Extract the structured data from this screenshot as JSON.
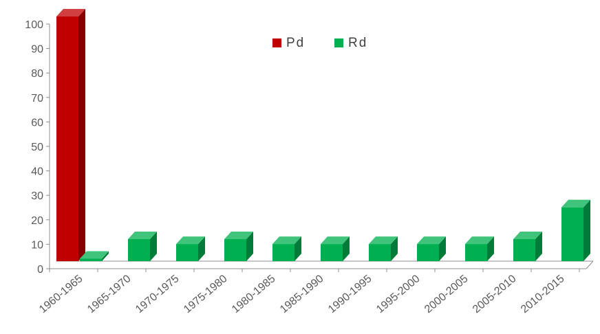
{
  "chart_data": {
    "type": "bar",
    "categories": [
      "1960-1965",
      "1965-1970",
      "1970-1975",
      "1975-1980",
      "1980-1985",
      "1985-1990",
      "1990-1995",
      "1995-2000",
      "2000-2005",
      "2005-2010",
      "2010-2015"
    ],
    "series": [
      {
        "name": "Pd",
        "color": "#c00000",
        "values": [
          100,
          0,
          0,
          0,
          0,
          0,
          0,
          0,
          0,
          0,
          0
        ]
      },
      {
        "name": "Rd",
        "color": "#00b050",
        "values": [
          1,
          9,
          7,
          9,
          7,
          7,
          7,
          7,
          7,
          9,
          22
        ]
      }
    ],
    "ylim": [
      0,
      100
    ],
    "yticks": [
      0,
      10,
      20,
      30,
      40,
      50,
      60,
      70,
      80,
      90,
      100
    ],
    "legend_position": "top-center",
    "grid": false,
    "style": "3d-bar"
  }
}
